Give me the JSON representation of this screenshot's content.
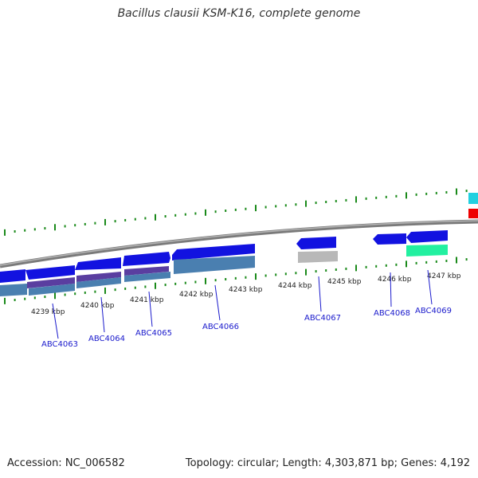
{
  "title": "Bacillus clausii KSM-K16, complete genome",
  "footer": {
    "accession": "Accession: NC_006582",
    "summary": "Topology: circular; Length: 4,303,871 bp; Genes: 4,192"
  },
  "colors": {
    "backbone": "#8a8a8a",
    "forward_cds": "#1010e0",
    "reverse_row_a": "#5a3ea0",
    "reverse_row_b": "#4a7fb0",
    "grey_feature": "#b8b8b8",
    "green_feature": "#20f0a0",
    "cyan_feature": "#20d0e0",
    "red_feature": "#ee0000",
    "tick": "#1a8a1a",
    "label": "#1a1acc"
  },
  "ticks": [
    "4239 kbp",
    "4240 kbp",
    "4241 kbp",
    "4242 kbp",
    "4243 kbp",
    "4244 kbp",
    "4245 kbp",
    "4246 kbp",
    "4247 kbp"
  ],
  "genes": [
    "ABC4063",
    "ABC4064",
    "ABC4065",
    "ABC4066",
    "ABC4067",
    "ABC4068",
    "ABC4069"
  ]
}
